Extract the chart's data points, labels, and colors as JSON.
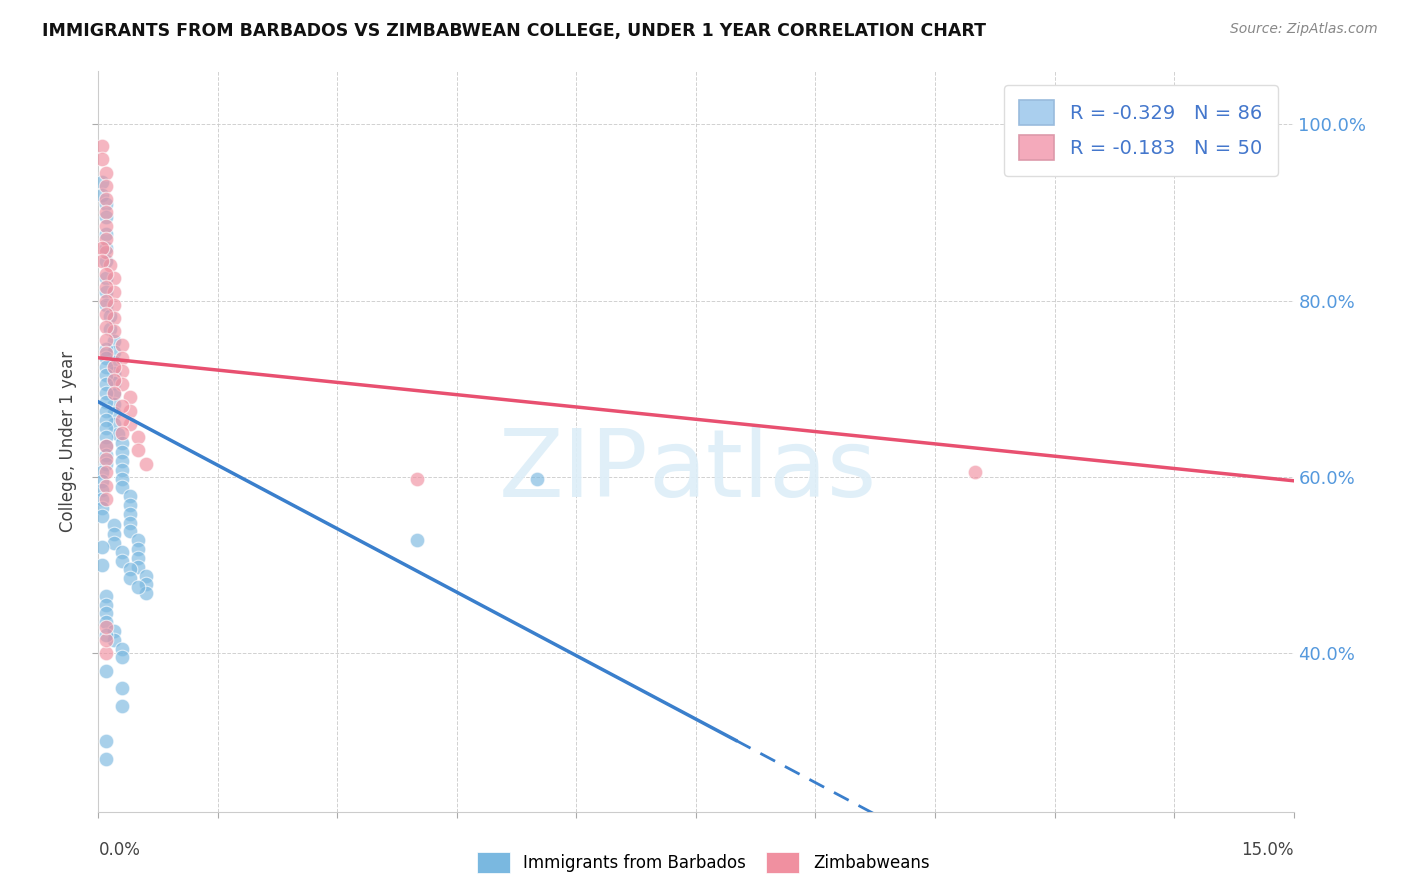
{
  "title": "IMMIGRANTS FROM BARBADOS VS ZIMBABWEAN COLLEGE, UNDER 1 YEAR CORRELATION CHART",
  "source": "Source: ZipAtlas.com",
  "ylabel": "College, Under 1 year",
  "right_yticks": [
    1.0,
    0.8,
    0.6,
    0.4
  ],
  "right_yticklabels": [
    "100.0%",
    "80.0%",
    "60.0%",
    "40.0%"
  ],
  "legend_label1": "R = -0.329   N = 86",
  "legend_label2": "R = -0.183   N = 50",
  "legend_color1": "#aacfee",
  "legend_color2": "#f4aabb",
  "series1_color": "#7ab8e0",
  "series2_color": "#f090a0",
  "trendline1_color": "#3a7fcc",
  "trendline2_color": "#e85070",
  "xmin": 0.0,
  "xmax": 0.15,
  "ymin": 0.22,
  "ymax": 1.06,
  "trendline1_x0": 0.0,
  "trendline1_y0": 0.685,
  "trendline1_slope": -4.8,
  "trendline1_solid_end": 0.08,
  "trendline2_x0": 0.0,
  "trendline2_y0": 0.735,
  "trendline2_slope": -0.93,
  "scatter1_x": [
    0.0005,
    0.0005,
    0.001,
    0.001,
    0.001,
    0.001,
    0.001,
    0.001,
    0.001,
    0.001,
    0.0015,
    0.0015,
    0.002,
    0.002,
    0.002,
    0.002,
    0.002,
    0.002,
    0.002,
    0.002,
    0.002,
    0.0025,
    0.003,
    0.003,
    0.003,
    0.003,
    0.003,
    0.003,
    0.004,
    0.004,
    0.004,
    0.004,
    0.004,
    0.005,
    0.005,
    0.005,
    0.005,
    0.006,
    0.006,
    0.006,
    0.001,
    0.001,
    0.001,
    0.001,
    0.001,
    0.001,
    0.001,
    0.001,
    0.001,
    0.001,
    0.001,
    0.001,
    0.001,
    0.001,
    0.0005,
    0.0005,
    0.0005,
    0.0005,
    0.0005,
    0.0005,
    0.002,
    0.002,
    0.002,
    0.003,
    0.003,
    0.004,
    0.004,
    0.005,
    0.001,
    0.001,
    0.001,
    0.001,
    0.002,
    0.002,
    0.003,
    0.003,
    0.04,
    0.055,
    0.003,
    0.003,
    0.001,
    0.001,
    0.001,
    0.001,
    0.0005,
    0.0005
  ],
  "scatter1_y": [
    0.935,
    0.92,
    0.91,
    0.895,
    0.875,
    0.86,
    0.845,
    0.825,
    0.81,
    0.795,
    0.782,
    0.768,
    0.754,
    0.742,
    0.73,
    0.718,
    0.706,
    0.694,
    0.683,
    0.672,
    0.66,
    0.648,
    0.638,
    0.628,
    0.618,
    0.608,
    0.598,
    0.588,
    0.578,
    0.568,
    0.558,
    0.548,
    0.538,
    0.528,
    0.518,
    0.508,
    0.498,
    0.488,
    0.478,
    0.468,
    0.745,
    0.735,
    0.725,
    0.715,
    0.705,
    0.695,
    0.685,
    0.675,
    0.665,
    0.655,
    0.645,
    0.635,
    0.625,
    0.615,
    0.605,
    0.595,
    0.585,
    0.575,
    0.565,
    0.555,
    0.545,
    0.535,
    0.525,
    0.515,
    0.505,
    0.495,
    0.485,
    0.475,
    0.465,
    0.455,
    0.445,
    0.435,
    0.425,
    0.415,
    0.405,
    0.395,
    0.528,
    0.598,
    0.36,
    0.34,
    0.3,
    0.28,
    0.38,
    0.42,
    0.5,
    0.52
  ],
  "scatter2_x": [
    0.0005,
    0.0005,
    0.001,
    0.001,
    0.001,
    0.001,
    0.001,
    0.001,
    0.001,
    0.0015,
    0.002,
    0.002,
    0.002,
    0.002,
    0.002,
    0.003,
    0.003,
    0.003,
    0.003,
    0.004,
    0.004,
    0.004,
    0.005,
    0.005,
    0.006,
    0.0005,
    0.0005,
    0.001,
    0.001,
    0.001,
    0.001,
    0.001,
    0.001,
    0.001,
    0.002,
    0.002,
    0.002,
    0.003,
    0.003,
    0.003,
    0.001,
    0.001,
    0.001,
    0.001,
    0.001,
    0.04,
    0.11,
    0.001,
    0.001,
    0.001
  ],
  "scatter2_y": [
    0.975,
    0.96,
    0.945,
    0.93,
    0.915,
    0.9,
    0.885,
    0.87,
    0.855,
    0.84,
    0.825,
    0.81,
    0.795,
    0.78,
    0.765,
    0.75,
    0.735,
    0.72,
    0.705,
    0.69,
    0.675,
    0.66,
    0.645,
    0.63,
    0.615,
    0.86,
    0.845,
    0.83,
    0.815,
    0.8,
    0.785,
    0.77,
    0.755,
    0.74,
    0.725,
    0.71,
    0.695,
    0.68,
    0.665,
    0.65,
    0.635,
    0.62,
    0.605,
    0.59,
    0.575,
    0.598,
    0.605,
    0.4,
    0.415,
    0.43
  ]
}
